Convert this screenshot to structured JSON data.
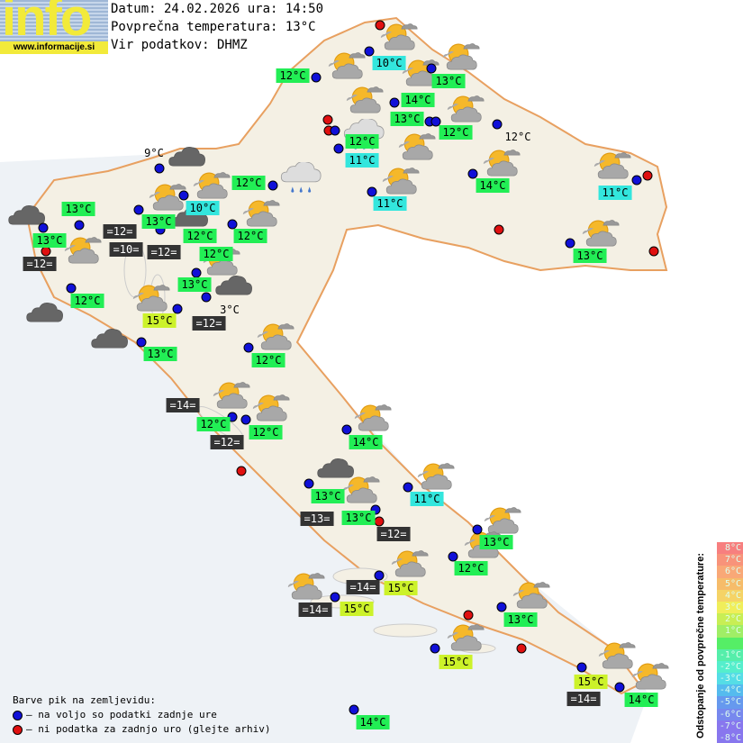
{
  "logo": {
    "text": "info",
    "url": "www.informacije.si"
  },
  "header": {
    "date_line": "Datum: 24.02.2026 ura: 14:50",
    "avg_line": "Povprečna temperatura: 13°C",
    "source_line": "Vir podatkov: DHMZ"
  },
  "colors": {
    "green": "#22ee55",
    "cyan": "#33e6dd",
    "yellow": "#ccf22a",
    "dark": "#333333",
    "blue_dot": "#1010d8",
    "red_dot": "#e01010"
  },
  "labels": [
    {
      "text": "10°C",
      "style": "cyan"
    },
    {
      "text": "12°C",
      "style": "green"
    },
    {
      "text": "13°C",
      "style": "green"
    },
    {
      "text": "14°C",
      "style": "green"
    },
    {
      "text": "13°C",
      "style": "green"
    },
    {
      "text": "12°C",
      "style": "green"
    },
    {
      "text": "12°C",
      "style": "plain"
    },
    {
      "text": "12°C",
      "style": "green"
    },
    {
      "text": "11°C",
      "style": "cyan"
    },
    {
      "text": "12°C",
      "style": "green"
    },
    {
      "text": "11°C",
      "style": "cyan"
    },
    {
      "text": "14°C",
      "style": "green"
    },
    {
      "text": "11°C",
      "style": "cyan"
    },
    {
      "text": "13°C",
      "style": "green"
    },
    {
      "text": "9°C",
      "style": "plain"
    },
    {
      "text": "10°C",
      "style": "cyan"
    },
    {
      "text": "13°C",
      "style": "green"
    },
    {
      "text": "13°C",
      "style": "green"
    },
    {
      "text": "12°C",
      "style": "green"
    },
    {
      "text": "13°C",
      "style": "green"
    },
    {
      "text": "=12=",
      "style": "dark"
    },
    {
      "text": "=12=",
      "style": "dark"
    },
    {
      "text": "12°C",
      "style": "green"
    },
    {
      "text": "12°C",
      "style": "green"
    },
    {
      "text": "=10=",
      "style": "dark"
    },
    {
      "text": "=12=",
      "style": "dark"
    },
    {
      "text": "13°C",
      "style": "green"
    },
    {
      "text": "3°C",
      "style": "plain"
    },
    {
      "text": "12°C",
      "style": "green"
    },
    {
      "text": "15°C",
      "style": "yellow"
    },
    {
      "text": "=12=",
      "style": "dark"
    },
    {
      "text": "13°C",
      "style": "green"
    },
    {
      "text": "12°C",
      "style": "green"
    },
    {
      "text": "=14=",
      "style": "dark"
    },
    {
      "text": "12°C",
      "style": "green"
    },
    {
      "text": "12°C",
      "style": "green"
    },
    {
      "text": "=12=",
      "style": "dark"
    },
    {
      "text": "14°C",
      "style": "green"
    },
    {
      "text": "13°C",
      "style": "green"
    },
    {
      "text": "11°C",
      "style": "cyan"
    },
    {
      "text": "=13=",
      "style": "dark"
    },
    {
      "text": "13°C",
      "style": "green"
    },
    {
      "text": "=12=",
      "style": "dark"
    },
    {
      "text": "13°C",
      "style": "green"
    },
    {
      "text": "12°C",
      "style": "green"
    },
    {
      "text": "=14=",
      "style": "dark"
    },
    {
      "text": "15°C",
      "style": "yellow"
    },
    {
      "text": "=14=",
      "style": "dark"
    },
    {
      "text": "15°C",
      "style": "yellow"
    },
    {
      "text": "13°C",
      "style": "green"
    },
    {
      "text": "15°C",
      "style": "yellow"
    },
    {
      "text": "15°C",
      "style": "yellow"
    },
    {
      "text": "=14=",
      "style": "dark"
    },
    {
      "text": "14°C",
      "style": "green"
    },
    {
      "text": "14°C",
      "style": "green"
    }
  ],
  "legend": {
    "title": "Barve pik na zemljevidu:",
    "blue": "– na voljo so podatki zadnje ure",
    "red": "– ni podatka za zadnjo uro (glejte arhiv)"
  },
  "scale": {
    "title": "Odstopanje od povprečne temperature:",
    "steps": [
      {
        "t": "8°C",
        "c": "#f77f7f"
      },
      {
        "t": "7°C",
        "c": "#f8937a"
      },
      {
        "t": "6°C",
        "c": "#f9a877"
      },
      {
        "t": "5°C",
        "c": "#f6bc6a"
      },
      {
        "t": "4°C",
        "c": "#f5d366"
      },
      {
        "t": "3°C",
        "c": "#f0ee5a"
      },
      {
        "t": "2°C",
        "c": "#c8ee55"
      },
      {
        "t": "1°C",
        "c": "#a0ee66"
      },
      {
        "t": "",
        "c": "#55ee66"
      },
      {
        "t": "-1°C",
        "c": "#55eeaa"
      },
      {
        "t": "-2°C",
        "c": "#55eecc"
      },
      {
        "t": "-3°C",
        "c": "#55dde6"
      },
      {
        "t": "-4°C",
        "c": "#55bbee"
      },
      {
        "t": "-5°C",
        "c": "#6699ee"
      },
      {
        "t": "-6°C",
        "c": "#7788ee"
      },
      {
        "t": "-7°C",
        "c": "#8877ee"
      },
      {
        "t": "-8°C",
        "c": "#8877ee"
      }
    ]
  }
}
